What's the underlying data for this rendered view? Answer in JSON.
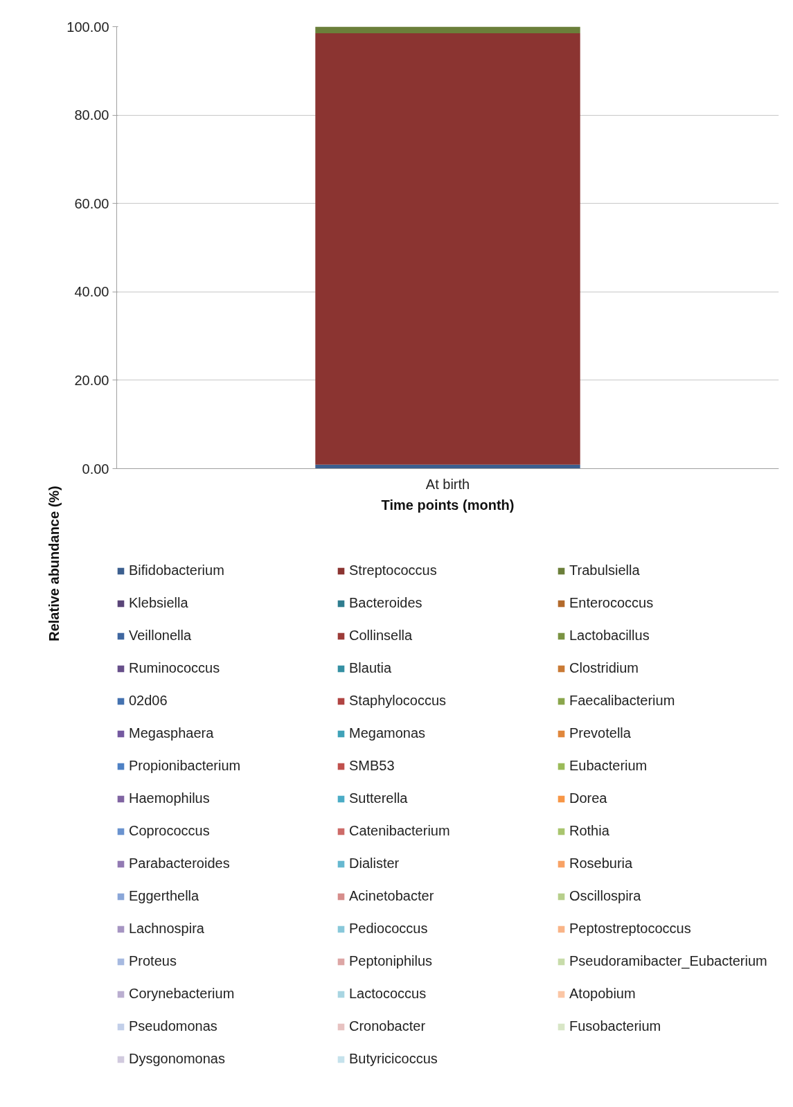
{
  "chart_data": {
    "type": "bar",
    "stacked": true,
    "xlabel": "Time points (month)",
    "ylabel": "Relative abundance (%)",
    "categories": [
      "At birth"
    ],
    "ylim": [
      0,
      100
    ],
    "yticks": [
      {
        "value": 0,
        "label": "0.00"
      },
      {
        "value": 20,
        "label": "20.00"
      },
      {
        "value": 40,
        "label": "40.00"
      },
      {
        "value": 60,
        "label": "60.00"
      },
      {
        "value": 80,
        "label": "80.00"
      },
      {
        "value": 100,
        "label": "100.00"
      }
    ],
    "grid": "y",
    "legend": "bottom",
    "series": [
      {
        "name": "Bifidobacterium",
        "color": "#3c5f8f",
        "values": [
          0.9
        ]
      },
      {
        "name": "Streptococcus",
        "color": "#8b3431",
        "values": [
          97.6
        ]
      },
      {
        "name": "Trabulsiella",
        "color": "#6b7f3a",
        "values": [
          1.5
        ]
      },
      {
        "name": "Klebsiella",
        "color": "#5a4578",
        "values": [
          0
        ]
      },
      {
        "name": "Bacteroides",
        "color": "#2f7d8f",
        "values": [
          0
        ]
      },
      {
        "name": "Enterococcus",
        "color": "#b36a2c",
        "values": [
          0
        ]
      },
      {
        "name": "Veillonella",
        "color": "#3f67a0",
        "values": [
          0
        ]
      },
      {
        "name": "Collinsella",
        "color": "#9c3b38",
        "values": [
          0
        ]
      },
      {
        "name": "Lactobacillus",
        "color": "#7a9342",
        "values": [
          0
        ]
      },
      {
        "name": "Ruminococcus",
        "color": "#674f8a",
        "values": [
          0
        ]
      },
      {
        "name": "Blautia",
        "color": "#3590a3",
        "values": [
          0
        ]
      },
      {
        "name": "Clostridium",
        "color": "#c97a35",
        "values": [
          0
        ]
      },
      {
        "name": "02d06",
        "color": "#4472b0",
        "values": [
          0
        ]
      },
      {
        "name": "Staphylococcus",
        "color": "#b04442",
        "values": [
          0
        ]
      },
      {
        "name": "Faecalibacterium",
        "color": "#8aa64c",
        "values": [
          0
        ]
      },
      {
        "name": "Megasphaera",
        "color": "#7459a0",
        "values": [
          0
        ]
      },
      {
        "name": "Megamonas",
        "color": "#3fa2b8",
        "values": [
          0
        ]
      },
      {
        "name": "Prevotella",
        "color": "#e0873c",
        "values": [
          0
        ]
      },
      {
        "name": "Propionibacterium",
        "color": "#4e81c4",
        "values": [
          0
        ]
      },
      {
        "name": "SMB53",
        "color": "#c0504d",
        "values": [
          0
        ]
      },
      {
        "name": "Eubacterium",
        "color": "#9bbb59",
        "values": [
          0
        ]
      },
      {
        "name": "Haemophilus",
        "color": "#8064a2",
        "values": [
          0
        ]
      },
      {
        "name": "Sutterella",
        "color": "#4bacc6",
        "values": [
          0
        ]
      },
      {
        "name": "Dorea",
        "color": "#f79646",
        "values": [
          0
        ]
      },
      {
        "name": "Coprococcus",
        "color": "#6a93cf",
        "values": [
          0
        ]
      },
      {
        "name": "Catenibacterium",
        "color": "#cd6b68",
        "values": [
          0
        ]
      },
      {
        "name": "Rothia",
        "color": "#a9c56e",
        "values": [
          0
        ]
      },
      {
        "name": "Parabacteroides",
        "color": "#927ab3",
        "values": [
          0
        ]
      },
      {
        "name": "Dialister",
        "color": "#66b8d0",
        "values": [
          0
        ]
      },
      {
        "name": "Roseburia",
        "color": "#f8a265",
        "values": [
          0
        ]
      },
      {
        "name": "Eggerthella",
        "color": "#8aa6d8",
        "values": [
          0
        ]
      },
      {
        "name": "Acinetobacter",
        "color": "#d68d8b",
        "values": [
          0
        ]
      },
      {
        "name": "Oscillospira",
        "color": "#b7cf8b",
        "values": [
          0
        ]
      },
      {
        "name": "Lachnospira",
        "color": "#a695c2",
        "values": [
          0
        ]
      },
      {
        "name": "Pediococcus",
        "color": "#88c8da",
        "values": [
          0
        ]
      },
      {
        "name": "Peptostreptococcus",
        "color": "#f9b487",
        "values": [
          0
        ]
      },
      {
        "name": "Proteus",
        "color": "#a6b9e0",
        "values": [
          0
        ]
      },
      {
        "name": "Peptoniphilus",
        "color": "#dda6a5",
        "values": [
          0
        ]
      },
      {
        "name": "Pseudoramibacter_Eubacterium",
        "color": "#c8dcaa",
        "values": [
          0
        ]
      },
      {
        "name": "Corynebacterium",
        "color": "#baaed0",
        "values": [
          0
        ]
      },
      {
        "name": "Lactococcus",
        "color": "#a8d5e2",
        "values": [
          0
        ]
      },
      {
        "name": "Atopobium",
        "color": "#fbc6a5",
        "values": [
          0
        ]
      },
      {
        "name": "Pseudomonas",
        "color": "#c2cfe9",
        "values": [
          0
        ]
      },
      {
        "name": "Cronobacter",
        "color": "#e7c2c1",
        "values": [
          0
        ]
      },
      {
        "name": "Fusobacterium",
        "color": "#d8e6c6",
        "values": [
          0
        ]
      },
      {
        "name": "Dysgonomonas",
        "color": "#d1cade",
        "values": [
          0
        ]
      },
      {
        "name": "Butyricicoccus",
        "color": "#c5e2ec",
        "values": [
          0
        ]
      }
    ]
  }
}
